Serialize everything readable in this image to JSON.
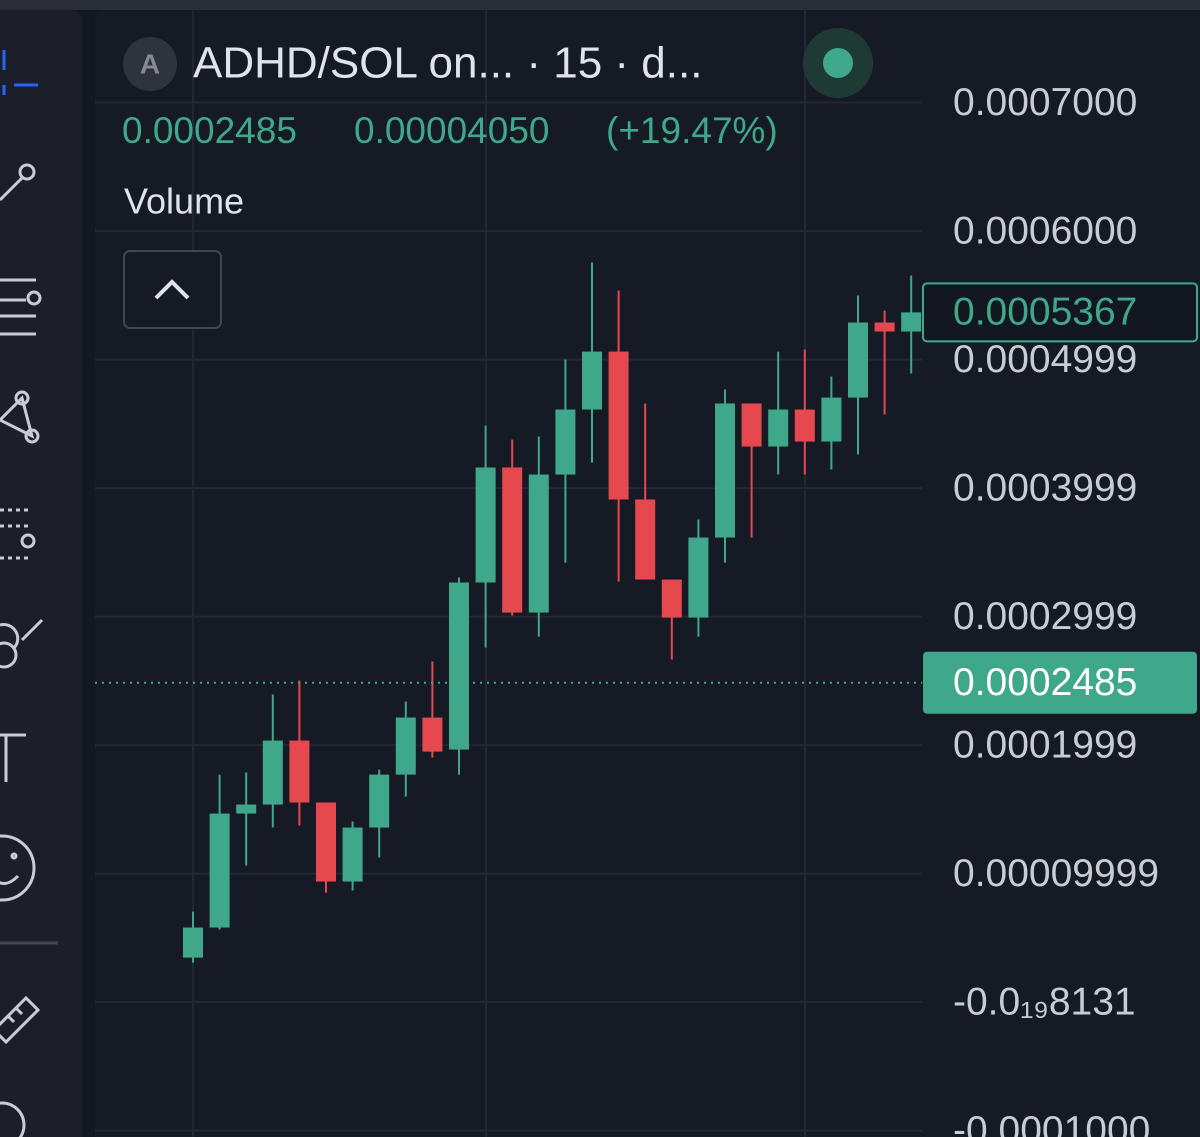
{
  "header": {
    "avatar": "A",
    "title": "ADHD/SOL on... · 15 · d...",
    "last": "0.0002485",
    "change": "0.00004050",
    "change_pct": "(+19.47%)",
    "indicator": "Volume"
  },
  "chart_data": {
    "type": "candlestick",
    "up_color": "#3fa88a",
    "down_color": "#e5484f",
    "grid": true,
    "ylim": [
      -0.000105,
      0.000772
    ],
    "yticks": [
      {
        "value": 0.0007,
        "label": "0.0007000"
      },
      {
        "value": 0.0006,
        "label": "0.0006000"
      },
      {
        "value": 0.0004999,
        "label": "0.0004999"
      },
      {
        "value": 0.0003999,
        "label": "0.0003999"
      },
      {
        "value": 0.0002999,
        "label": "0.0002999"
      },
      {
        "value": 0.0001999,
        "label": "0.0001999"
      },
      {
        "value": 9.999e-05,
        "label": "0.00009999"
      },
      {
        "value": -8.131e-20,
        "label": "-0.0₁₉8131"
      },
      {
        "value": -0.0001,
        "label": "-0.0001000"
      }
    ],
    "price_labels": [
      {
        "value": 0.0005367,
        "label": "0.0005367"
      },
      {
        "value": 0.0002485,
        "label": "0.0002485"
      }
    ],
    "open": [
      3.46e-05,
      5.8e-05,
      0.0001467,
      0.0001537,
      0.0002035,
      0.0001553,
      9.38e-05,
      0.0001358,
      0.000177,
      0.0002214,
      0.0001965,
      0.0003265,
      0.000416,
      0.0003031,
      0.0004105,
      0.0004611,
      0.0005062,
      0.0003911,
      0.0003288,
      0.0002992,
      0.0003615,
      0.0004658,
      0.0004323,
      0.0004611,
      0.0004362,
      0.0004704,
      0.0005288,
      0.0005218
    ],
    "high": [
      7.04e-05,
      0.000177,
      0.0001786,
      0.0002393,
      0.0002502,
      0.0001553,
      0.0001405,
      0.0001809,
      0.0002339,
      0.000265,
      0.0003304,
      0.0004486,
      0.0004377,
      0.0004401,
      0.0005,
      0.0005755,
      0.0005537,
      0.0004658,
      0.0003288,
      0.0003755,
      0.0004767,
      0.0004658,
      0.0005062,
      0.0005078,
      0.0004868,
      0.0005498,
      0.0005381,
      0.0005654
    ],
    "low": [
      3.07e-05,
      5.64e-05,
      0.0001062,
      0.0001358,
      0.0001374,
      8.52e-05,
      8.68e-05,
      0.0001125,
      0.0001599,
      0.0001903,
      0.000177,
      0.0002759,
      0.0003008,
      0.0002844,
      0.000342,
      0.0004198,
      0.0003272,
      0.0003288,
      0.0002665,
      0.0002844,
      0.000342,
      0.0003615,
      0.0004105,
      0.0004105,
      0.0004144,
      0.0004261,
      0.0004572,
      0.0004891
    ],
    "close": [
      5.8e-05,
      0.0001467,
      0.0001537,
      0.0002035,
      0.0001553,
      9.38e-05,
      0.0001358,
      0.000177,
      0.0002214,
      0.0001949,
      0.0003265,
      0.000416,
      0.0003031,
      0.0004105,
      0.0004611,
      0.0005062,
      0.0003911,
      0.0003288,
      0.0002992,
      0.0003615,
      0.0004658,
      0.0004323,
      0.0004611,
      0.0004362,
      0.0004704,
      0.0005288,
      0.0005218,
      0.0005367
    ]
  }
}
